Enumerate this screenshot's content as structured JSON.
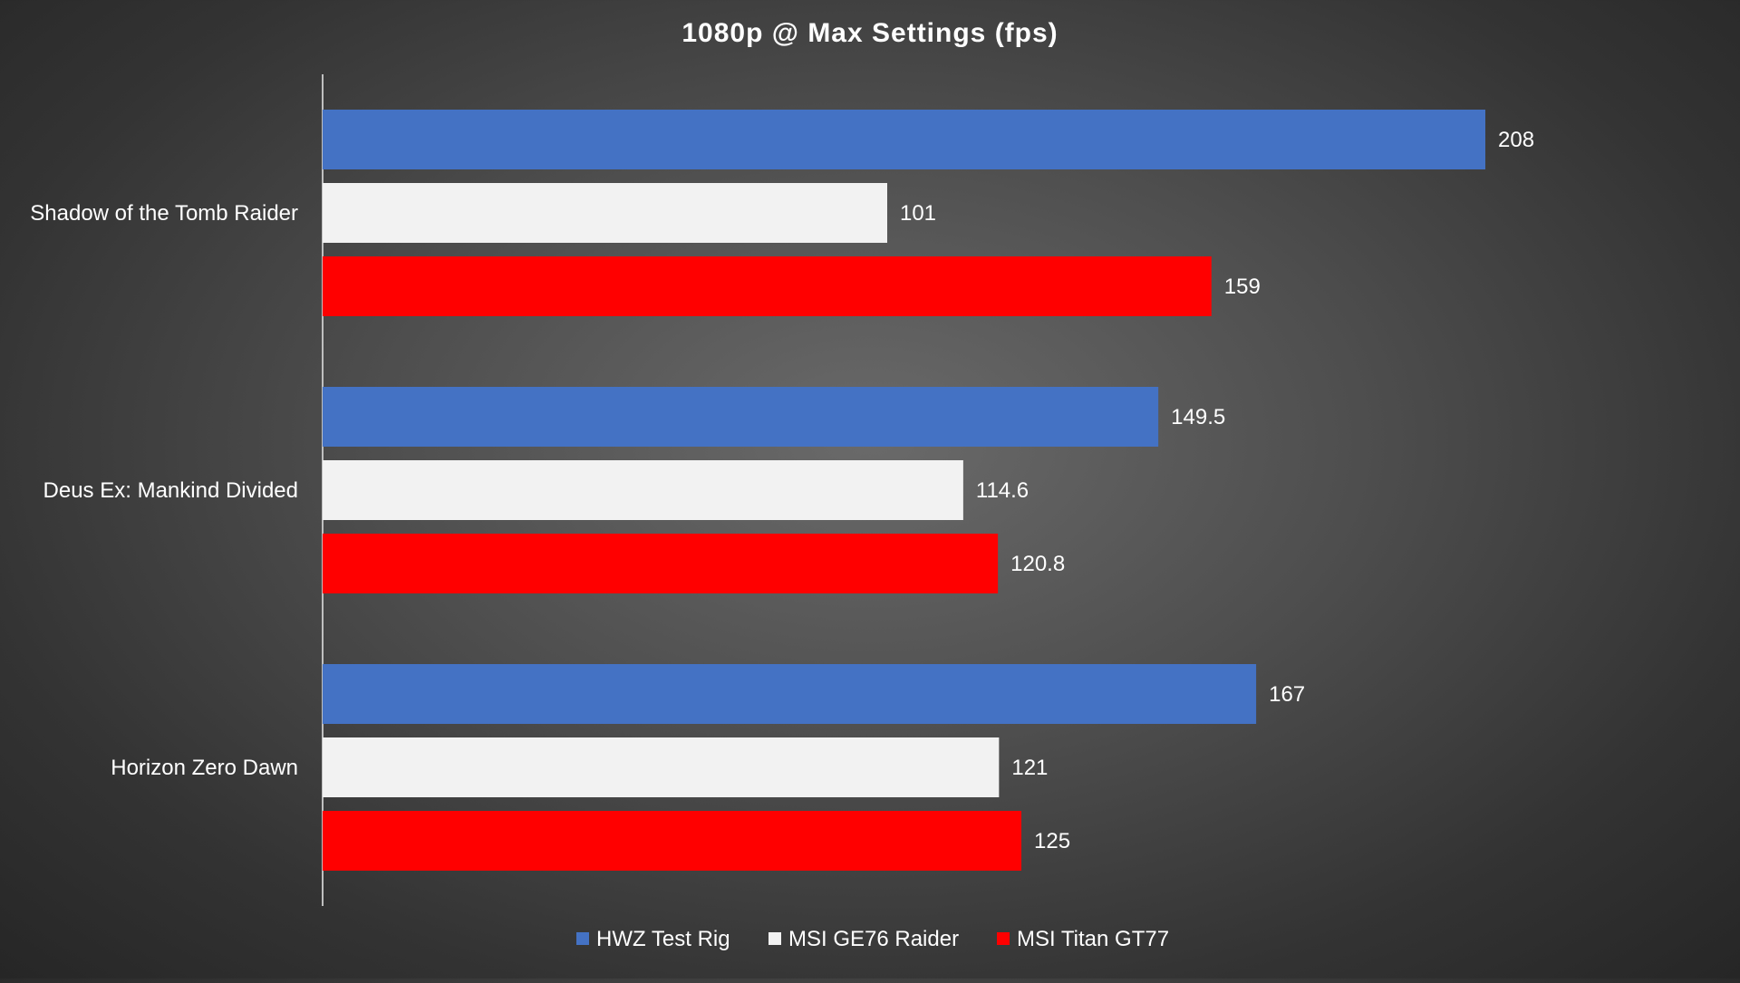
{
  "chart_data": {
    "type": "bar",
    "orientation": "horizontal",
    "title": "1080p @ Max Settings (fps)",
    "xlabel": "",
    "ylabel": "",
    "categories": [
      "Shadow of the Tomb Raider",
      "Deus Ex: Mankind Divided",
      "Horizon Zero Dawn"
    ],
    "series": [
      {
        "name": "HWZ Test Rig",
        "color": "#4472c4",
        "values": [
          208,
          149.5,
          167
        ],
        "labels": [
          "208",
          "149.5",
          "167"
        ]
      },
      {
        "name": "MSI GE76 Raider",
        "color": "#f2f2f2",
        "values": [
          101,
          114.6,
          121
        ],
        "labels": [
          "101",
          "114.6",
          "121"
        ]
      },
      {
        "name": "MSI Titan GT77",
        "color": "#ff0000",
        "values": [
          159,
          120.8,
          125
        ],
        "labels": [
          "159",
          "120.8",
          "125"
        ]
      }
    ],
    "xlim": [
      0,
      290
    ],
    "grid": false,
    "legend_position": "bottom"
  }
}
